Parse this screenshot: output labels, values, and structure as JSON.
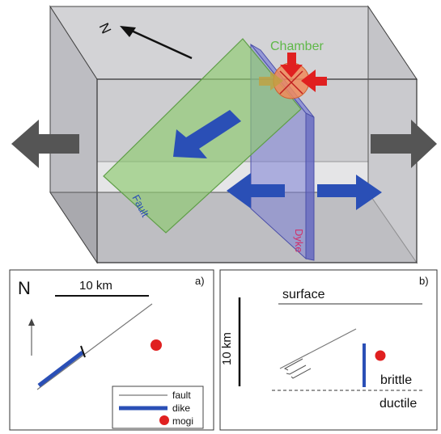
{
  "block": {
    "compass_letter": "N",
    "chamber_label": "Chamber",
    "fault_label": "Fault",
    "dyke_label": "Dyke",
    "colors": {
      "fault_plane": "#8ecb6e",
      "dyke_plane": "#7b7fd6",
      "slip_arrow": "#2a4fb6",
      "chamber_fill": "#f08a5a",
      "chamber_arrows": "#e02020",
      "extension_arrows": "#555555"
    }
  },
  "panel_a": {
    "tag": "a)",
    "north_label": "N",
    "scale_label": "10 km",
    "legend": {
      "fault": "fault",
      "dike": "dike",
      "mogi": "mogi"
    }
  },
  "panel_b": {
    "tag": "b)",
    "surface_label": "surface",
    "scale_label": "10 km",
    "brittle_label": "brittle",
    "ductile_label": "ductile"
  }
}
